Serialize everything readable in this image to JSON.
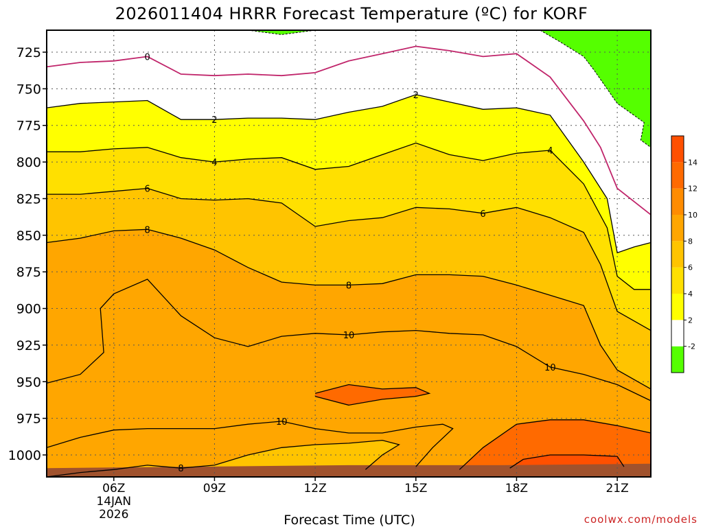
{
  "chart_data": {
    "type": "contour",
    "title": "2026011404 HRRR Forecast Temperature (ºC) for KORF",
    "xlabel": "Forecast Time (UTC)",
    "ylabel": "",
    "credit": "coolwx.com/models",
    "x_ticks": [
      "06Z",
      "09Z",
      "12Z",
      "15Z",
      "18Z",
      "21Z"
    ],
    "x_tick_hours": [
      6,
      9,
      12,
      15,
      18,
      21
    ],
    "x_date_lines": [
      "14JAN",
      "2026"
    ],
    "xlim": [
      4,
      22
    ],
    "y_ticks": [
      725,
      750,
      775,
      800,
      825,
      850,
      875,
      900,
      925,
      950,
      975,
      1000
    ],
    "ylim": [
      1015,
      710
    ],
    "y_axis": "pressure (hPa), inverted",
    "grid": true,
    "colorbar": {
      "levels": [
        -2,
        2,
        4,
        6,
        8,
        10,
        12,
        14
      ],
      "tick_labels": [
        "-2",
        "2",
        "4",
        "6",
        "8",
        "10",
        "12",
        "14"
      ],
      "colors": [
        "#55ff00",
        "#ffffff",
        "#ffff00",
        "#ffe000",
        "#ffc400",
        "#ffa600",
        "#ff8c00",
        "#ff6a00",
        "#ff5000"
      ]
    },
    "contours": [
      {
        "level": 0,
        "color": "#c0246a",
        "points": [
          [
            4,
            735
          ],
          [
            5,
            732
          ],
          [
            6,
            731
          ],
          [
            7,
            728
          ],
          [
            8,
            740
          ],
          [
            9,
            741
          ],
          [
            10,
            740
          ],
          [
            11,
            741
          ],
          [
            12,
            739
          ],
          [
            13,
            731
          ],
          [
            14,
            726
          ],
          [
            15,
            721
          ],
          [
            16,
            724
          ],
          [
            17,
            728
          ],
          [
            18,
            726
          ],
          [
            19,
            742
          ],
          [
            20,
            772
          ],
          [
            20.5,
            790
          ],
          [
            21,
            818
          ],
          [
            22,
            836
          ]
        ]
      },
      {
        "level": 2,
        "color": "#000000",
        "points": [
          [
            4,
            763
          ],
          [
            5,
            760
          ],
          [
            6,
            759
          ],
          [
            7,
            758
          ],
          [
            8,
            771
          ],
          [
            9,
            771
          ],
          [
            10,
            770
          ],
          [
            11,
            770
          ],
          [
            12,
            771
          ],
          [
            13,
            766
          ],
          [
            14,
            762
          ],
          [
            15,
            754
          ],
          [
            16,
            759
          ],
          [
            17,
            764
          ],
          [
            18,
            763
          ],
          [
            19,
            768
          ],
          [
            20,
            800
          ],
          [
            20.7,
            825
          ],
          [
            21,
            862
          ],
          [
            21.5,
            858
          ],
          [
            22,
            855
          ]
        ]
      },
      {
        "level": 4,
        "color": "#000000",
        "points": [
          [
            4,
            793
          ],
          [
            5,
            793
          ],
          [
            6,
            791
          ],
          [
            7,
            790
          ],
          [
            8,
            797
          ],
          [
            9,
            800
          ],
          [
            10,
            798
          ],
          [
            11,
            797
          ],
          [
            12,
            805
          ],
          [
            13,
            803
          ],
          [
            14,
            795
          ],
          [
            15,
            787
          ],
          [
            16,
            795
          ],
          [
            17,
            799
          ],
          [
            18,
            794
          ],
          [
            19,
            792
          ],
          [
            20,
            815
          ],
          [
            20.7,
            845
          ],
          [
            21,
            878
          ],
          [
            21.5,
            887
          ],
          [
            22,
            887
          ]
        ]
      },
      {
        "level": 6,
        "color": "#000000",
        "points": [
          [
            4,
            822
          ],
          [
            5,
            822
          ],
          [
            6,
            820
          ],
          [
            7,
            818
          ],
          [
            8,
            825
          ],
          [
            9,
            826
          ],
          [
            10,
            825
          ],
          [
            11,
            828
          ],
          [
            12,
            844
          ],
          [
            13,
            840
          ],
          [
            14,
            838
          ],
          [
            15,
            831
          ],
          [
            16,
            832
          ],
          [
            17,
            835
          ],
          [
            18,
            831
          ],
          [
            19,
            838
          ],
          [
            20,
            848
          ],
          [
            20.5,
            870
          ],
          [
            21,
            902
          ],
          [
            22,
            915
          ]
        ]
      },
      {
        "level": 8,
        "color": "#000000",
        "points": [
          [
            4,
            855
          ],
          [
            5,
            852
          ],
          [
            6,
            847
          ],
          [
            7,
            846
          ],
          [
            8,
            852
          ],
          [
            9,
            860
          ],
          [
            10,
            872
          ],
          [
            11,
            882
          ],
          [
            12,
            884
          ],
          [
            13,
            884
          ],
          [
            14,
            883
          ],
          [
            15,
            877
          ],
          [
            16,
            877
          ],
          [
            17,
            878
          ],
          [
            18,
            884
          ],
          [
            19,
            891
          ],
          [
            20,
            898
          ],
          [
            20.5,
            925
          ],
          [
            21,
            942
          ],
          [
            22,
            955
          ]
        ]
      },
      {
        "level": 10,
        "color": "#000000",
        "points": [
          [
            4,
            951
          ],
          [
            5,
            945
          ],
          [
            5.7,
            930
          ],
          [
            5.6,
            900
          ],
          [
            6,
            890
          ],
          [
            7,
            880
          ],
          [
            8,
            905
          ],
          [
            9,
            920
          ],
          [
            10,
            926
          ],
          [
            11,
            919
          ],
          [
            12,
            917
          ],
          [
            13,
            918
          ],
          [
            14,
            916
          ],
          [
            15,
            915
          ],
          [
            16,
            917
          ],
          [
            17,
            918
          ],
          [
            18,
            926
          ],
          [
            19,
            940
          ],
          [
            20,
            945
          ],
          [
            21,
            952
          ],
          [
            22,
            963
          ]
        ]
      },
      {
        "level": 10,
        "color": "#000000",
        "points": [
          [
            4,
            995
          ],
          [
            5,
            988
          ],
          [
            6,
            983
          ],
          [
            7,
            982
          ],
          [
            8,
            982
          ],
          [
            9,
            982
          ],
          [
            10,
            979
          ],
          [
            11,
            977
          ],
          [
            12,
            982
          ],
          [
            13,
            985
          ],
          [
            14,
            985
          ],
          [
            15,
            981
          ],
          [
            15.8,
            979
          ],
          [
            16.1,
            982
          ],
          [
            15.5,
            995
          ],
          [
            15,
            1008
          ]
        ]
      },
      {
        "level": 8,
        "color": "#000000",
        "points": [
          [
            4,
            1015
          ],
          [
            5,
            1012
          ],
          [
            6,
            1010
          ],
          [
            7,
            1007
          ],
          [
            8,
            1009
          ],
          [
            9,
            1007
          ],
          [
            10,
            1000
          ],
          [
            11,
            995
          ],
          [
            12,
            993
          ],
          [
            13,
            992
          ],
          [
            14,
            990
          ],
          [
            14.5,
            993
          ],
          [
            14,
            1000
          ],
          [
            13.5,
            1010
          ]
        ]
      },
      {
        "level": 12,
        "color": "#000000",
        "points": [
          [
            12,
            958
          ],
          [
            13,
            952
          ],
          [
            14,
            955
          ],
          [
            15,
            954
          ],
          [
            15.4,
            958
          ],
          [
            15,
            960
          ],
          [
            14,
            962
          ],
          [
            13,
            966
          ],
          [
            12,
            960
          ]
        ]
      },
      {
        "level": 12,
        "color": "#000000",
        "points": [
          [
            16.3,
            1010
          ],
          [
            17,
            995
          ],
          [
            18,
            979
          ],
          [
            19,
            976
          ],
          [
            20,
            976
          ],
          [
            21,
            980
          ],
          [
            22,
            985
          ]
        ]
      },
      {
        "level": 14,
        "color": "#000000",
        "points": [
          [
            17.8,
            1009
          ],
          [
            18.2,
            1003
          ],
          [
            19,
            1000
          ],
          [
            20,
            1000
          ],
          [
            21,
            1001
          ],
          [
            21.2,
            1008
          ]
        ]
      }
    ],
    "contour_labels": [
      {
        "text": "0",
        "x": 7,
        "y": 728
      },
      {
        "text": "2",
        "x": 9,
        "y": 771
      },
      {
        "text": "2",
        "x": 15,
        "y": 754
      },
      {
        "text": "4",
        "x": 9,
        "y": 800
      },
      {
        "text": "4",
        "x": 19,
        "y": 792
      },
      {
        "text": "6",
        "x": 7,
        "y": 818
      },
      {
        "text": "6",
        "x": 17,
        "y": 835
      },
      {
        "text": "8",
        "x": 7,
        "y": 846
      },
      {
        "text": "8",
        "x": 13,
        "y": 884
      },
      {
        "text": "8",
        "x": 8,
        "y": 1009
      },
      {
        "text": "10",
        "x": 13,
        "y": 918
      },
      {
        "text": "10",
        "x": 19,
        "y": 940
      },
      {
        "text": "10",
        "x": 11,
        "y": 977
      }
    ],
    "freezing_regions": [
      {
        "color": "#55ff00",
        "points": [
          [
            10,
            710
          ],
          [
            11,
            713
          ],
          [
            12,
            710
          ]
        ]
      },
      {
        "color": "#55ff00",
        "points": [
          [
            18.7,
            710
          ],
          [
            19.3,
            718
          ],
          [
            20,
            728
          ],
          [
            20.3,
            737
          ],
          [
            21,
            760
          ],
          [
            21.8,
            773
          ],
          [
            21.7,
            785
          ],
          [
            22,
            790
          ],
          [
            22,
            710
          ]
        ]
      }
    ],
    "ground_pressure": [
      1009,
      1008,
      1007,
      1007,
      1006
    ]
  }
}
